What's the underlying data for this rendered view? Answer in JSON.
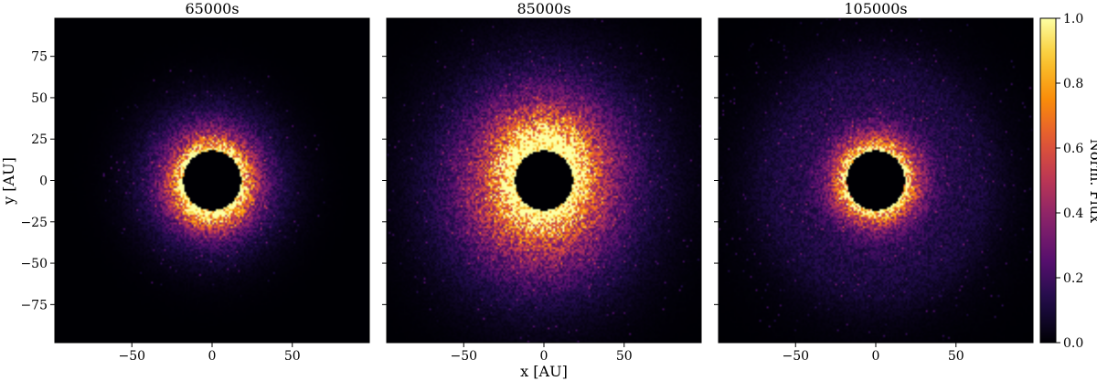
{
  "chart_data": {
    "type": "heatmap",
    "panels": [
      {
        "title": "65000s",
        "hole_radius_au": 18,
        "inner_peak_y_offset_au": -5,
        "ring_width_au": 8,
        "halo_extent_au": 55,
        "asymmetry": "bright lower arc"
      },
      {
        "title": "85000s",
        "hole_radius_au": 18,
        "inner_peak_y_offset_au": 6,
        "ring_width_au": 14,
        "halo_extent_au": 90,
        "asymmetry": "bright upper arc, extended diffuse disk to the lower right"
      },
      {
        "title": "105000s",
        "hole_radius_au": 18,
        "inner_peak_y_offset_au": 0,
        "ring_width_au": 9,
        "halo_extent_au": 95,
        "asymmetry": "near-symmetric ring with faint wide halo"
      }
    ],
    "xlabel": "x [AU]",
    "ylabel": "y [AU]",
    "xlim": [
      -98,
      98
    ],
    "ylim": [
      -98,
      98
    ],
    "xticks": [
      -50,
      0,
      50
    ],
    "yticks": [
      -75,
      -50,
      -25,
      0,
      25,
      50,
      75
    ],
    "colorbar": {
      "label": "Norm. Flux",
      "range": [
        0,
        1
      ],
      "ticks": [
        0.0,
        0.2,
        0.4,
        0.6,
        0.8,
        1.0
      ],
      "tick_labels": [
        "0.0",
        "0.2",
        "0.4",
        "0.6",
        "0.8",
        "1.0"
      ],
      "colormap": "inferno"
    }
  }
}
